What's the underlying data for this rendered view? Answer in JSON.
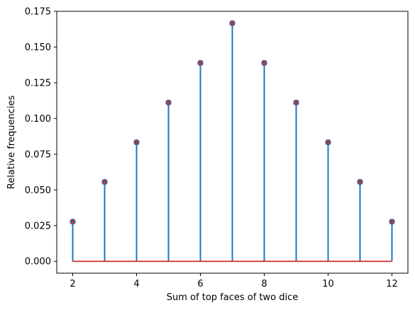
{
  "chart_data": {
    "type": "stem",
    "title": "",
    "xlabel": "Sum of top faces of two dice",
    "ylabel": "Relative frequencies",
    "x": [
      2,
      3,
      4,
      5,
      6,
      7,
      8,
      9,
      10,
      11,
      12
    ],
    "series": [
      {
        "values": [
          0.02778,
          0.05556,
          0.08333,
          0.11111,
          0.13889,
          0.16667,
          0.13889,
          0.11111,
          0.08333,
          0.05556,
          0.02778
        ],
        "marker": "circle",
        "color": "#1f77b4"
      },
      {
        "values": [
          0.02778,
          0.05556,
          0.08333,
          0.11111,
          0.13889,
          0.16667,
          0.13889,
          0.11111,
          0.08333,
          0.05556,
          0.02778
        ],
        "marker": "x",
        "color": "#d62728"
      }
    ],
    "baseline": {
      "value": 0,
      "color": "#d62728"
    },
    "xlim": [
      1.5,
      12.5
    ],
    "ylim": [
      -0.0083,
      0.175
    ],
    "xticks": [
      2,
      4,
      6,
      8,
      10,
      12
    ],
    "xtick_labels": [
      "2",
      "4",
      "6",
      "8",
      "10",
      "12"
    ],
    "yticks": [
      0,
      0.025,
      0.05,
      0.075,
      0.1,
      0.125,
      0.15,
      0.175
    ],
    "ytick_labels": [
      "0.000",
      "0.025",
      "0.050",
      "0.075",
      "0.100",
      "0.125",
      "0.150",
      "0.175"
    ],
    "grid": false,
    "legend": "none"
  }
}
